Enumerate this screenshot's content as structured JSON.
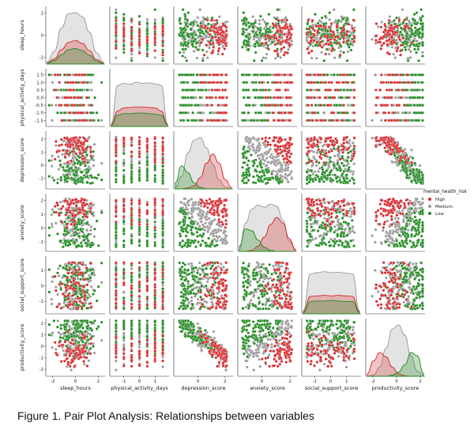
{
  "caption": "Figure 1. Pair Plot Analysis: Relationships between variables",
  "chart_data": {
    "type": "pairplot",
    "variables": [
      "sleep_hours",
      "physical_activity_days",
      "depression_score",
      "anxiety_score",
      "social_support_score",
      "productivity_score"
    ],
    "ranges": {
      "sleep_hours": [
        -2.6,
        2.6
      ],
      "physical_activity_days": [
        -1.9,
        1.9
      ],
      "depression_score": [
        -1.8,
        2.6
      ],
      "anxiety_score": [
        -1.7,
        2.5
      ],
      "social_support_score": [
        -1.8,
        1.9
      ],
      "productivity_score": [
        -2.6,
        2.4
      ]
    },
    "y_ticks": {
      "sleep_hours": [
        -2,
        0,
        2
      ],
      "physical_activity_days": [
        -1.5,
        -1.0,
        -0.5,
        0.0,
        0.5,
        1.0,
        1.5
      ],
      "depression_score": [
        -1,
        0,
        1,
        2
      ],
      "anxiety_score": [
        -1,
        0,
        1,
        2
      ],
      "social_support_score": [
        -1,
        0,
        1
      ],
      "productivity_score": [
        -2,
        -1,
        0,
        1,
        2
      ]
    },
    "x_ticks": {
      "sleep_hours": [
        -2,
        0,
        2
      ],
      "physical_activity_days": [
        -1,
        0,
        1
      ],
      "depression_score": [
        0,
        2
      ],
      "anxiety_score": [
        0,
        2
      ],
      "social_support_score": [
        -1,
        0,
        1
      ],
      "productivity_score": [
        -2,
        0,
        2
      ]
    },
    "discrete_levels": {
      "physical_activity_days": [
        -1.5,
        -1.0,
        -0.5,
        0.0,
        0.5,
        1.0,
        1.5
      ]
    },
    "hue": "mental_health_risk",
    "legend": {
      "title": "mental_health_risk",
      "position": "right",
      "entries": [
        {
          "label": "High",
          "color": "#d8272b"
        },
        {
          "label": "Medium",
          "color": "#999999"
        },
        {
          "label": "Low",
          "color": "#1f8a1f"
        }
      ]
    },
    "diagonal_kde": {
      "sleep_hours": {
        "High": [
          0.03,
          0.1,
          0.28,
          0.42,
          0.46,
          0.4,
          0.26,
          0.09,
          0.02
        ],
        "Medium": [
          0.05,
          0.25,
          0.7,
          0.98,
          1.0,
          0.92,
          0.62,
          0.22,
          0.04
        ],
        "Low": [
          0.02,
          0.07,
          0.18,
          0.28,
          0.3,
          0.26,
          0.17,
          0.06,
          0.01
        ]
      },
      "physical_activity_days": {
        "High": [
          0.04,
          0.3,
          0.36,
          0.37,
          0.38,
          0.38,
          0.37,
          0.36,
          0.3,
          0.04
        ],
        "Medium": [
          0.06,
          0.8,
          0.84,
          0.82,
          0.86,
          0.84,
          0.85,
          0.83,
          0.8,
          0.06
        ],
        "Low": [
          0.03,
          0.22,
          0.25,
          0.25,
          0.26,
          0.26,
          0.25,
          0.24,
          0.22,
          0.03
        ]
      },
      "depression_score": {
        "High": [
          0.0,
          0.0,
          0.02,
          0.06,
          0.22,
          0.5,
          0.68,
          0.5,
          0.18,
          0.03
        ],
        "Medium": [
          0.03,
          0.25,
          0.7,
          0.95,
          1.0,
          0.8,
          0.48,
          0.18,
          0.04,
          0.0
        ],
        "Low": [
          0.12,
          0.45,
          0.32,
          0.12,
          0.03,
          0.0,
          0.0,
          0.0,
          0.0,
          0.0
        ]
      },
      "anxiety_score": {
        "High": [
          0.0,
          0.0,
          0.02,
          0.1,
          0.28,
          0.52,
          0.66,
          0.55,
          0.25,
          0.04
        ],
        "Medium": [
          0.04,
          0.55,
          0.82,
          0.9,
          0.86,
          0.92,
          0.88,
          0.6,
          0.2,
          0.03
        ],
        "Low": [
          0.1,
          0.44,
          0.4,
          0.22,
          0.08,
          0.02,
          0.0,
          0.0,
          0.0,
          0.0
        ]
      },
      "social_support_score": {
        "High": [
          0.04,
          0.34,
          0.35,
          0.36,
          0.35,
          0.36,
          0.35,
          0.34,
          0.04
        ],
        "Medium": [
          0.06,
          0.78,
          0.8,
          0.82,
          0.8,
          0.81,
          0.79,
          0.78,
          0.06
        ],
        "Low": [
          0.03,
          0.24,
          0.25,
          0.25,
          0.26,
          0.25,
          0.24,
          0.24,
          0.03
        ]
      },
      "productivity_score": {
        "High": [
          0.05,
          0.3,
          0.46,
          0.38,
          0.18,
          0.05,
          0.01,
          0.0,
          0.0,
          0.0
        ],
        "Medium": [
          0.0,
          0.03,
          0.18,
          0.55,
          0.92,
          1.0,
          0.8,
          0.4,
          0.1,
          0.02
        ],
        "Low": [
          0.0,
          0.0,
          0.0,
          0.0,
          0.02,
          0.08,
          0.22,
          0.46,
          0.4,
          0.06
        ]
      }
    },
    "scatter_patterns": {
      "depression_vs_anxiety": "class bands separated by diagonal lines (High upper-right, Low lower-left)",
      "productivity_vs_depression": "strong negative diagonal band",
      "productivity_vs_anxiety": "negative relation, Low risk at high productivity",
      "others": "uniform mixed cloud"
    }
  }
}
